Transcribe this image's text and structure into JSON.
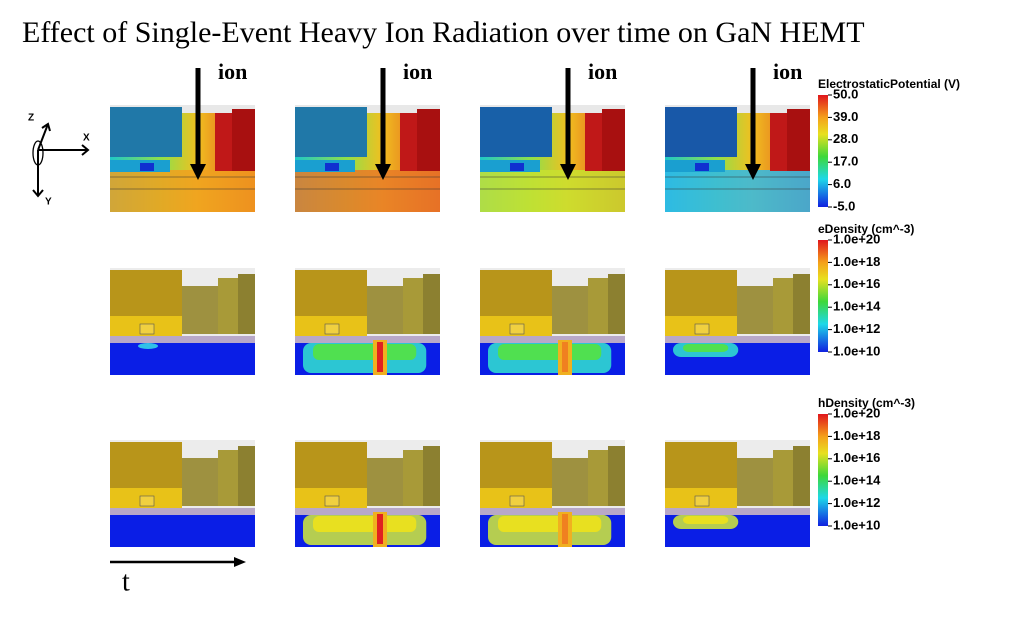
{
  "title": "Effect of Single-Event Heavy Ion Radiation over time on GaN HEMT",
  "ion_labels": [
    "ion",
    "ion",
    "ion",
    "ion"
  ],
  "axes": {
    "z": "Z",
    "x": "X",
    "y": "Y"
  },
  "time_label": "t",
  "colorbars": [
    {
      "title": "ElectrostaticPotential (V)",
      "ticks": [
        "50.0",
        "39.0",
        "28.0",
        "17.0",
        "6.0",
        "-5.0"
      ]
    },
    {
      "title": "eDensity (cm^-3)",
      "ticks": [
        "1.0e+20",
        "1.0e+18",
        "1.0e+16",
        "1.0e+14",
        "1.0e+12",
        "1.0e+10"
      ]
    },
    {
      "title": "hDensity (cm^-3)",
      "ticks": [
        "1.0e+20",
        "1.0e+18",
        "1.0e+16",
        "1.0e+14",
        "1.0e+12",
        "1.0e+10"
      ]
    }
  ]
}
